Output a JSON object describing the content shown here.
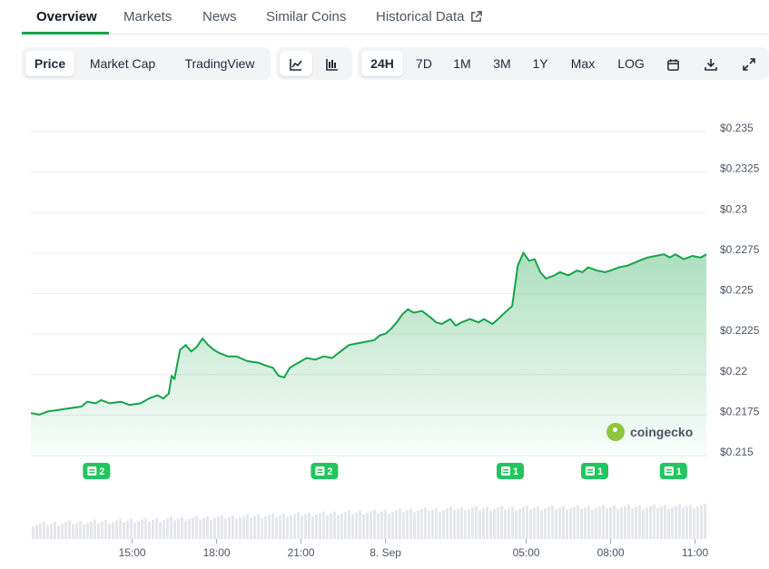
{
  "tabs": [
    {
      "label": "Overview",
      "active": true
    },
    {
      "label": "Markets"
    },
    {
      "label": "News"
    },
    {
      "label": "Similar Coins"
    },
    {
      "label": "Historical Data",
      "external": true
    }
  ],
  "toolbar": {
    "metric": [
      "Price",
      "Market Cap",
      "TradingView"
    ],
    "active_metric": "Price",
    "chart_styles": [
      "line-chart-icon",
      "candlestick-icon"
    ],
    "ranges": [
      "24H",
      "7D",
      "1M",
      "3M",
      "1Y",
      "Max",
      "LOG"
    ],
    "active_range": "24H",
    "actions": [
      "calendar-icon",
      "download-icon",
      "expand-icon"
    ]
  },
  "watermark": "coingecko",
  "colors": {
    "accent": "#16a34a",
    "line": "#16a34a",
    "news_badge": "#22c55e"
  },
  "chart_data": {
    "type": "area",
    "y_ticks": [
      "$0.235",
      "$0.2325",
      "$0.23",
      "$0.2275",
      "$0.225",
      "$0.2225",
      "$0.22",
      "$0.2175",
      "$0.215"
    ],
    "ylim": [
      0.215,
      0.235
    ],
    "x_ticks": [
      {
        "label": "15:00",
        "hour": 3
      },
      {
        "label": "18:00",
        "hour": 6
      },
      {
        "label": "21:00",
        "hour": 9
      },
      {
        "label": "8. Sep",
        "hour": 12
      },
      {
        "label": "05:00",
        "hour": 17
      },
      {
        "label": "08:00",
        "hour": 20
      },
      {
        "label": "11:00",
        "hour": 23
      }
    ],
    "xlim": [
      -0.6,
      23.4
    ],
    "grid": true,
    "series": [
      {
        "values": [
          [
            -0.6,
            0.2174
          ],
          [
            -0.3,
            0.2173
          ],
          [
            0,
            0.2175
          ],
          [
            0.4,
            0.2176
          ],
          [
            0.8,
            0.2177
          ],
          [
            1.2,
            0.2178
          ],
          [
            1.4,
            0.2181
          ],
          [
            1.7,
            0.218
          ],
          [
            1.9,
            0.2182
          ],
          [
            2.2,
            0.218
          ],
          [
            2.6,
            0.2181
          ],
          [
            2.9,
            0.2179
          ],
          [
            3.3,
            0.218
          ],
          [
            3.6,
            0.2183
          ],
          [
            3.9,
            0.2185
          ],
          [
            4.1,
            0.2183
          ],
          [
            4.3,
            0.2186
          ],
          [
            4.4,
            0.2197
          ],
          [
            4.5,
            0.2195
          ],
          [
            4.7,
            0.2213
          ],
          [
            4.9,
            0.2216
          ],
          [
            5.1,
            0.2212
          ],
          [
            5.3,
            0.2215
          ],
          [
            5.5,
            0.222
          ],
          [
            5.7,
            0.2216
          ],
          [
            5.9,
            0.2213
          ],
          [
            6.1,
            0.2211
          ],
          [
            6.4,
            0.2209
          ],
          [
            6.7,
            0.2209
          ],
          [
            7.1,
            0.2206
          ],
          [
            7.5,
            0.2205
          ],
          [
            7.8,
            0.2203
          ],
          [
            8.0,
            0.2202
          ],
          [
            8.2,
            0.2197
          ],
          [
            8.4,
            0.2196
          ],
          [
            8.6,
            0.2202
          ],
          [
            8.9,
            0.2205
          ],
          [
            9.2,
            0.2208
          ],
          [
            9.5,
            0.2207
          ],
          [
            9.8,
            0.2209
          ],
          [
            10.1,
            0.2208
          ],
          [
            10.4,
            0.2212
          ],
          [
            10.7,
            0.2216
          ],
          [
            11.0,
            0.2217
          ],
          [
            11.3,
            0.2218
          ],
          [
            11.6,
            0.2219
          ],
          [
            11.8,
            0.2222
          ],
          [
            12.0,
            0.2223
          ],
          [
            12.2,
            0.2226
          ],
          [
            12.4,
            0.223
          ],
          [
            12.6,
            0.2235
          ],
          [
            12.8,
            0.2238
          ],
          [
            13.0,
            0.2236
          ],
          [
            13.3,
            0.2237
          ],
          [
            13.6,
            0.2233
          ],
          [
            13.8,
            0.223
          ],
          [
            14.0,
            0.2229
          ],
          [
            14.3,
            0.2232
          ],
          [
            14.5,
            0.2228
          ],
          [
            14.7,
            0.223
          ],
          [
            15.0,
            0.2232
          ],
          [
            15.3,
            0.223
          ],
          [
            15.5,
            0.2232
          ],
          [
            15.8,
            0.2229
          ],
          [
            16.0,
            0.2232
          ],
          [
            16.3,
            0.2237
          ],
          [
            16.5,
            0.224
          ],
          [
            16.7,
            0.2265
          ],
          [
            16.9,
            0.2273
          ],
          [
            17.1,
            0.2268
          ],
          [
            17.3,
            0.2269
          ],
          [
            17.5,
            0.2261
          ],
          [
            17.7,
            0.2257
          ],
          [
            18.0,
            0.2259
          ],
          [
            18.2,
            0.2261
          ],
          [
            18.5,
            0.2259
          ],
          [
            18.8,
            0.2262
          ],
          [
            19.0,
            0.2261
          ],
          [
            19.2,
            0.2264
          ],
          [
            19.5,
            0.2262
          ],
          [
            19.8,
            0.2261
          ],
          [
            20.0,
            0.2262
          ],
          [
            20.3,
            0.2264
          ],
          [
            20.6,
            0.2265
          ],
          [
            21.0,
            0.2268
          ],
          [
            21.3,
            0.227
          ],
          [
            21.6,
            0.2271
          ],
          [
            21.9,
            0.2272
          ],
          [
            22.1,
            0.227
          ],
          [
            22.3,
            0.2272
          ],
          [
            22.6,
            0.2269
          ],
          [
            22.9,
            0.2271
          ],
          [
            23.2,
            0.227
          ],
          [
            23.4,
            0.2272
          ]
        ]
      }
    ],
    "news_markers": [
      {
        "hour": 1.7,
        "count": "2"
      },
      {
        "hour": 9.8,
        "count": "2"
      },
      {
        "hour": 16.4,
        "count": "1"
      },
      {
        "hour": 19.4,
        "count": "1"
      },
      {
        "hour": 22.2,
        "count": "1"
      }
    ]
  }
}
